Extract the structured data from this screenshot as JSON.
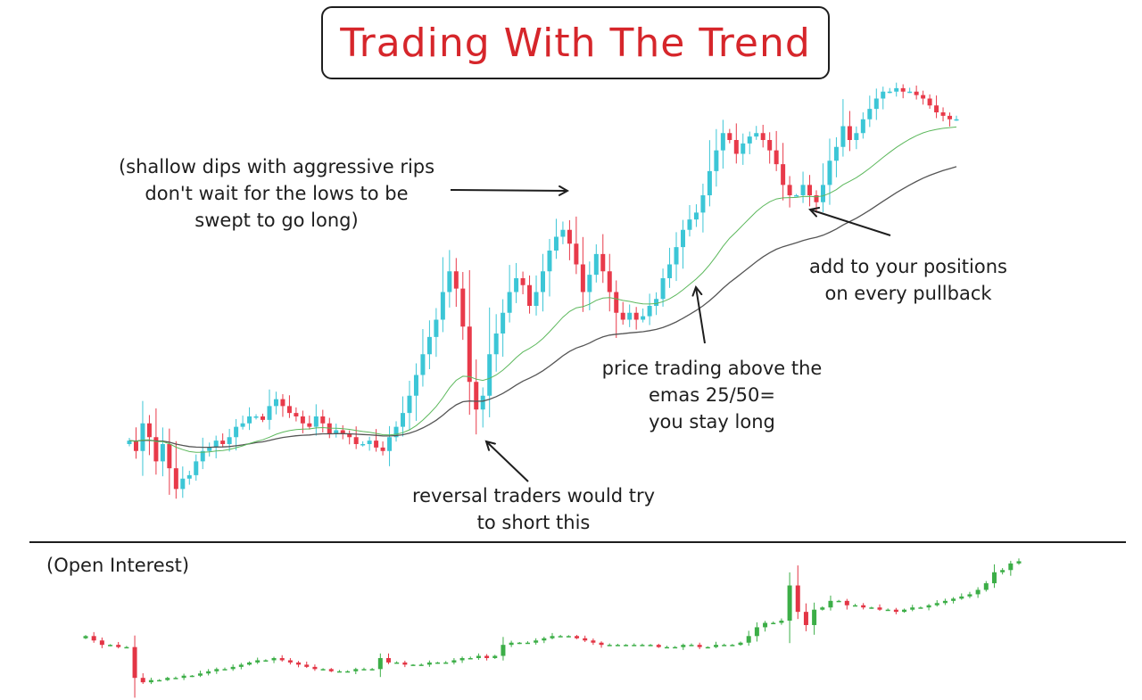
{
  "title": "Trading With The Trend",
  "annotations": {
    "shallow_dips": [
      "(shallow dips with aggressive rips",
      "don't wait for the lows to be",
      "swept to go long)"
    ],
    "add_positions": [
      "add to your positions",
      "on every pullback"
    ],
    "price_above_emas": [
      "price trading above the",
      "emas 25/50=",
      "you stay long"
    ],
    "reversal": [
      "reversal traders would try",
      "to short this"
    ],
    "open_interest": "(Open Interest)"
  },
  "colors": {
    "bull": "#3cc6d6",
    "bear": "#e83a4a",
    "oi_bull": "#3cae47",
    "oi_bear": "#e33545",
    "ema_fast": "#5cb85c",
    "ema_slow": "#555555",
    "title": "#d6262b",
    "ink": "#1e1e1e"
  },
  "chart_data": [
    {
      "type": "candlestick",
      "name": "price",
      "close": [
        47,
        44,
        52,
        48,
        41,
        46,
        39,
        33,
        36,
        37,
        41,
        44,
        45,
        47,
        46,
        48,
        51,
        52,
        54,
        54,
        53,
        57,
        59,
        57,
        55,
        54,
        52,
        51,
        54,
        52,
        49,
        50,
        49,
        48,
        46,
        46,
        47,
        45,
        44,
        48,
        51,
        55,
        60,
        66,
        72,
        77,
        82,
        90,
        96,
        91,
        80,
        64,
        56,
        60,
        72,
        78,
        84,
        90,
        94,
        92,
        86,
        90,
        96,
        102,
        106,
        108,
        104,
        98,
        90,
        95,
        101,
        96,
        90,
        84,
        82,
        84,
        82,
        83,
        86,
        88,
        94,
        98,
        103,
        108,
        111,
        113,
        118,
        125,
        131,
        136,
        134,
        130,
        133,
        135,
        136,
        134,
        131,
        127,
        121,
        118,
        118,
        121,
        118,
        116,
        121,
        128,
        132,
        138,
        134,
        136,
        140,
        143,
        146,
        148,
        148,
        149,
        148,
        148,
        147,
        146,
        144,
        142,
        141,
        140,
        140
      ],
      "ema_25": [],
      "ema_50": []
    },
    {
      "type": "candlestick",
      "name": "open interest",
      "close": [
        25,
        23,
        21,
        21,
        20,
        20,
        6,
        4,
        5,
        5,
        6,
        6,
        7,
        7,
        8,
        9,
        10,
        10,
        11,
        12,
        13,
        14,
        14,
        15,
        14,
        13,
        12,
        11,
        10,
        10,
        9,
        9,
        9,
        10,
        10,
        10,
        15,
        13,
        13,
        12,
        12,
        12,
        13,
        13,
        13,
        14,
        15,
        15,
        16,
        15,
        16,
        21,
        22,
        22,
        22,
        23,
        24,
        25,
        25,
        25,
        24,
        23,
        22,
        21,
        21,
        21,
        21,
        21,
        21,
        21,
        20,
        20,
        20,
        21,
        21,
        20,
        20,
        21,
        21,
        21,
        22,
        25,
        29,
        31,
        31,
        32,
        48,
        36,
        30,
        37,
        38,
        41,
        41,
        39,
        39,
        38,
        38,
        37,
        37,
        36,
        37,
        38,
        38,
        39,
        40,
        41,
        42,
        43,
        44,
        46,
        49,
        54,
        55,
        58,
        59
      ],
      "ema_25": [],
      "ema_50": []
    }
  ]
}
